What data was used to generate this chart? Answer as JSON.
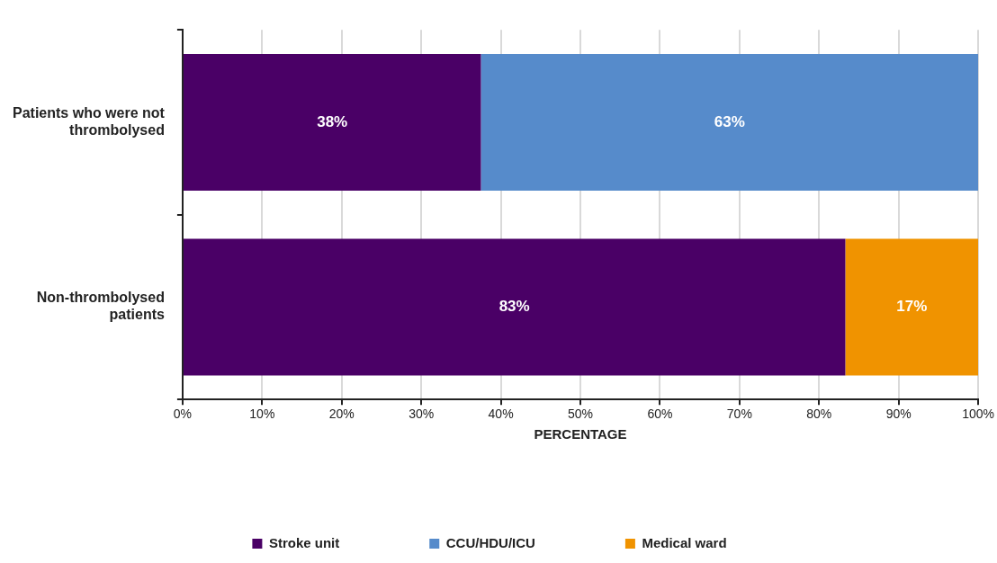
{
  "chart_data": {
    "type": "bar",
    "orientation": "horizontal",
    "stacked": true,
    "categories": [
      "Patients who were not thrombolysed",
      "Non-thrombolysed patients"
    ],
    "series": [
      {
        "name": "Stroke unit",
        "color": "#4a0066",
        "values": [
          37.5,
          83.3
        ],
        "value_labels": [
          "38%",
          "83%"
        ]
      },
      {
        "name": "CCU/HDU/ICU",
        "color": "#568bcb",
        "values": [
          62.5,
          null
        ],
        "value_labels": [
          "63%",
          null
        ]
      },
      {
        "name": "Medical ward",
        "color": "#f09300",
        "values": [
          null,
          16.7
        ],
        "value_labels": [
          null,
          "17%"
        ]
      }
    ],
    "xlabel": "PERCENTAGE",
    "xlim": [
      0,
      100
    ],
    "xticks": [
      {
        "value": 0,
        "label": "0%"
      },
      {
        "value": 10,
        "label": "10%"
      },
      {
        "value": 20,
        "label": "20%"
      },
      {
        "value": 30,
        "label": "30%"
      },
      {
        "value": 40,
        "label": "40%"
      },
      {
        "value": 50,
        "label": "50%"
      },
      {
        "value": 60,
        "label": "60%"
      },
      {
        "value": 70,
        "label": "70%"
      },
      {
        "value": 80,
        "label": "80%"
      },
      {
        "value": 90,
        "label": "90%"
      },
      {
        "value": 100,
        "label": "100%"
      }
    ],
    "grid": "x",
    "legend": "bottom"
  }
}
